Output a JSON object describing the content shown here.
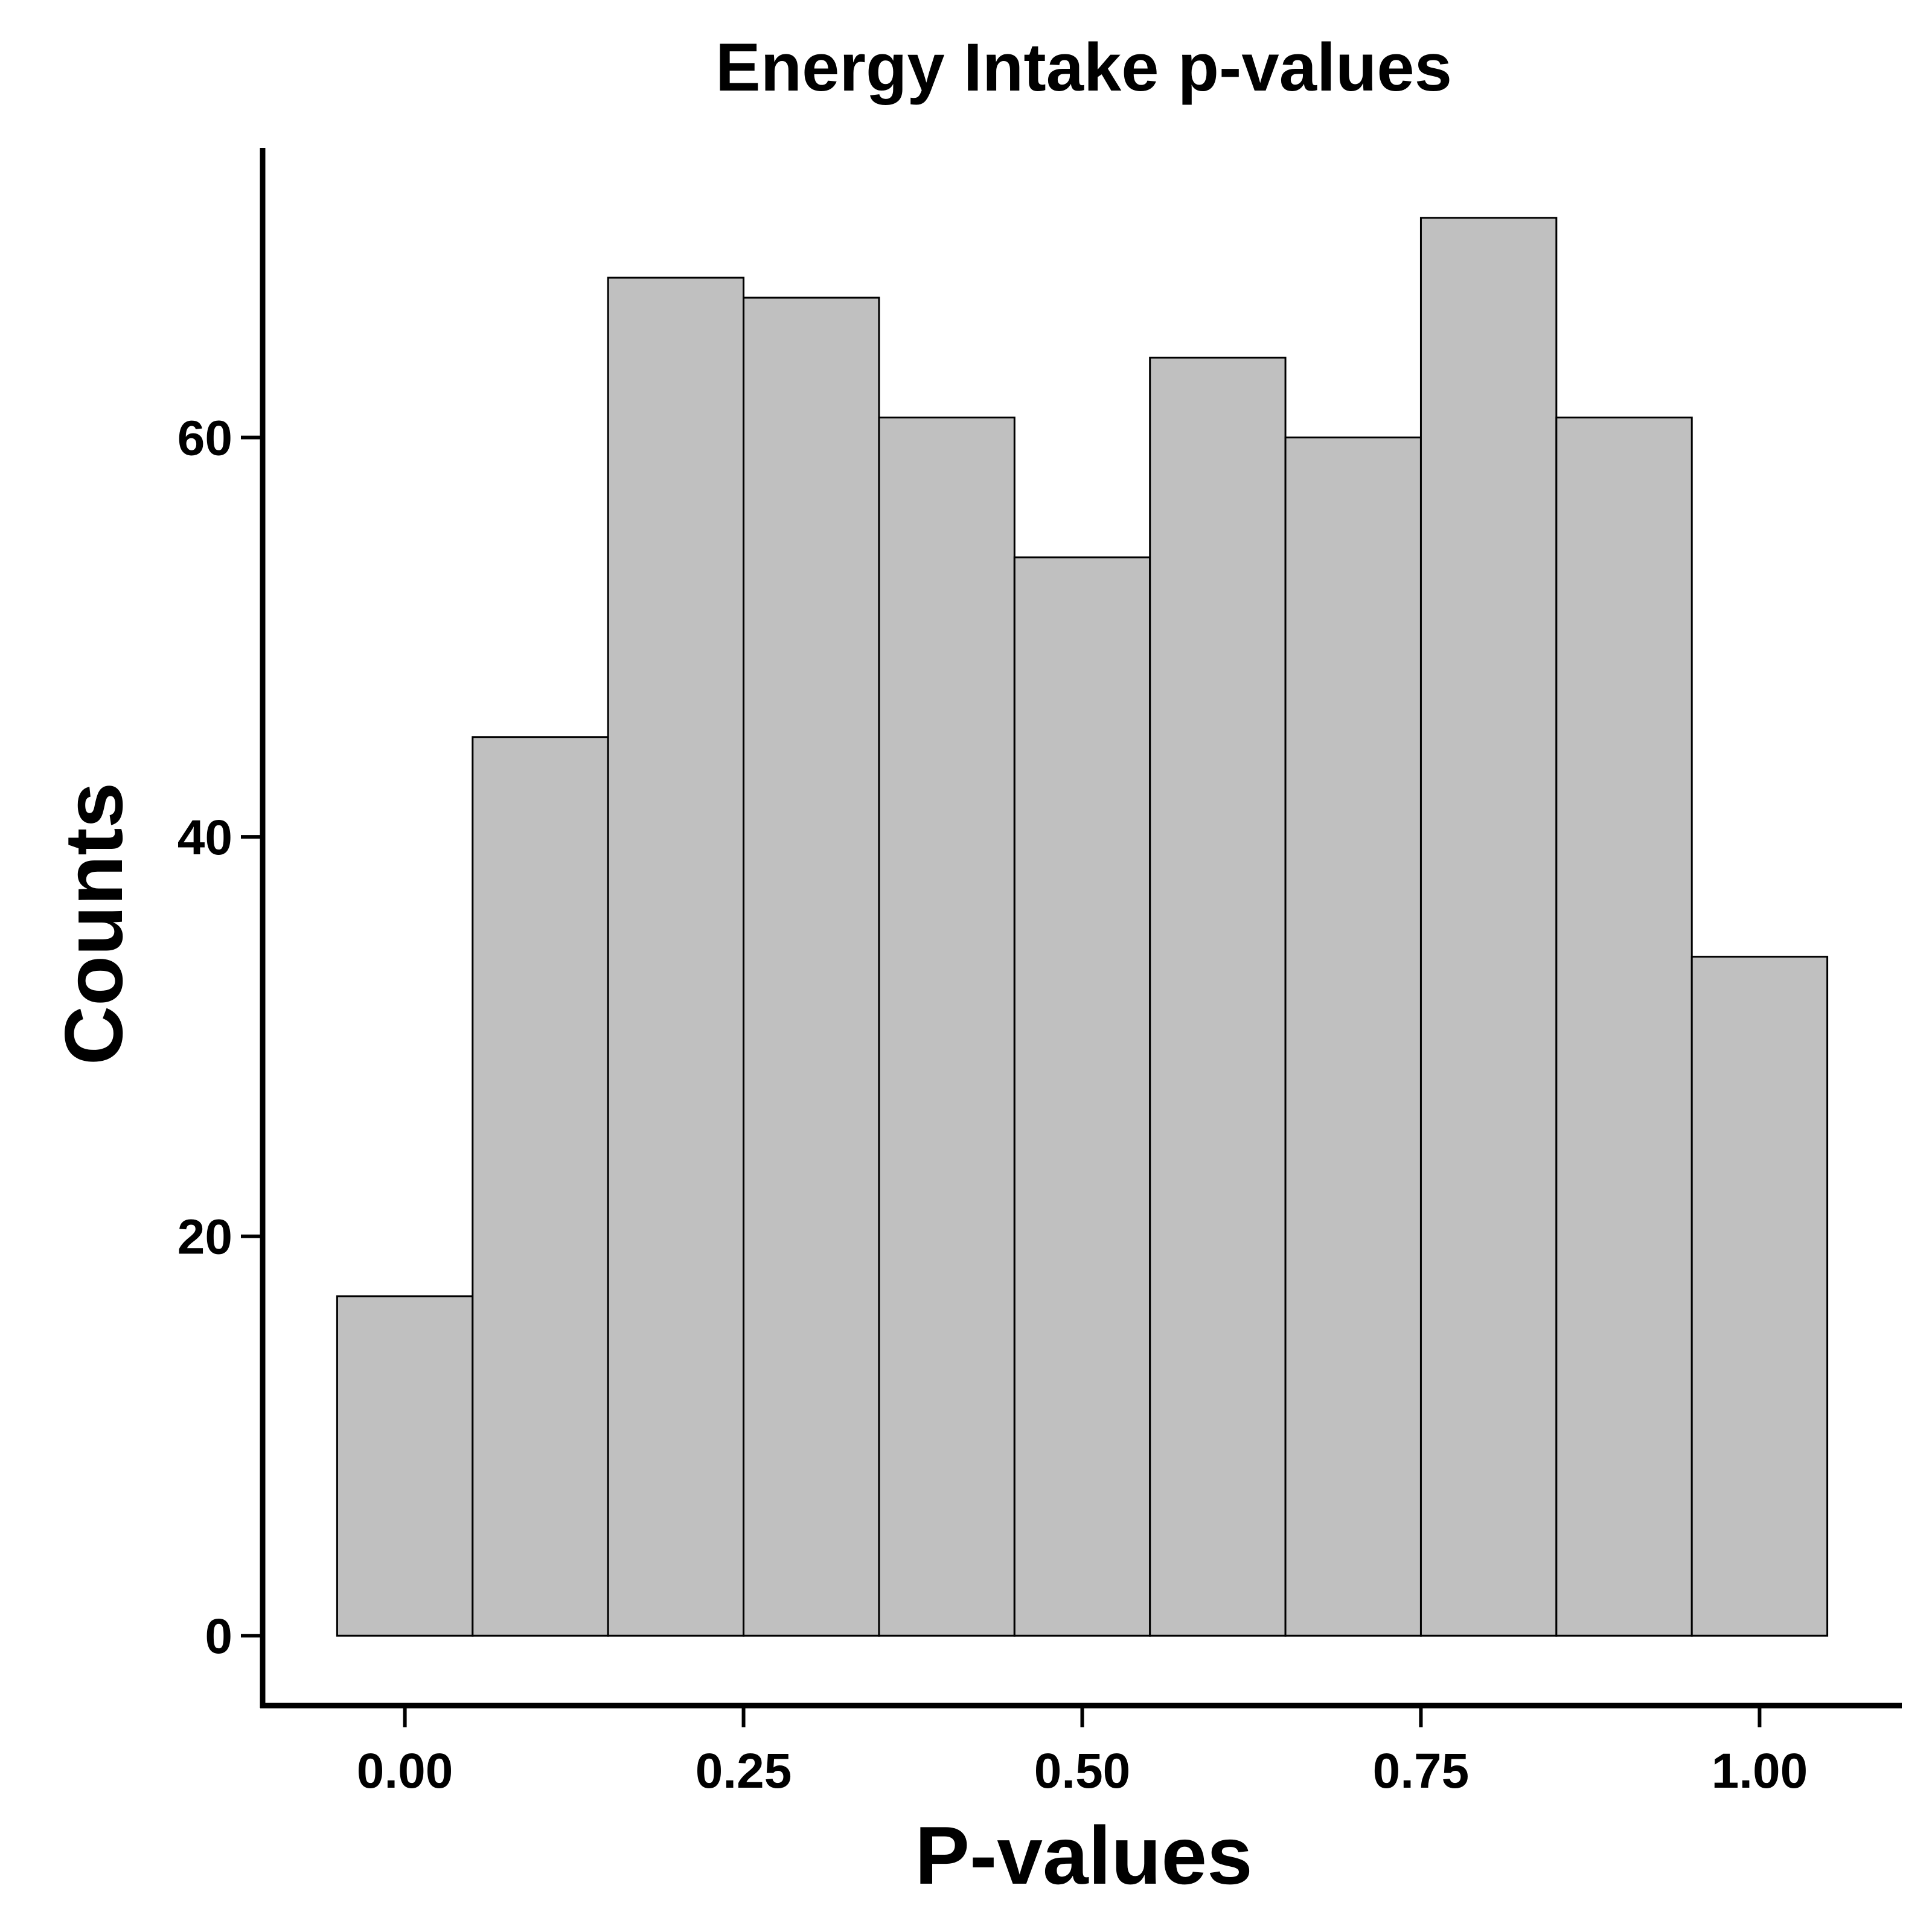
{
  "chart_data": {
    "type": "bar",
    "title": "Energy Intake p-values",
    "xlabel": "P-values",
    "ylabel": "Counts",
    "bin_width": 0.1,
    "bins": [
      {
        "start": -0.05,
        "end": 0.05,
        "count": 17
      },
      {
        "start": 0.05,
        "end": 0.15,
        "count": 45
      },
      {
        "start": 0.15,
        "end": 0.25,
        "count": 68
      },
      {
        "start": 0.25,
        "end": 0.35,
        "count": 67
      },
      {
        "start": 0.35,
        "end": 0.45,
        "count": 61
      },
      {
        "start": 0.45,
        "end": 0.55,
        "count": 54
      },
      {
        "start": 0.55,
        "end": 0.65,
        "count": 64
      },
      {
        "start": 0.65,
        "end": 0.75,
        "count": 60
      },
      {
        "start": 0.75,
        "end": 0.85,
        "count": 71
      },
      {
        "start": 0.85,
        "end": 0.95,
        "count": 61
      },
      {
        "start": 0.95,
        "end": 1.05,
        "count": 34
      }
    ],
    "x_ticks": [
      {
        "value": 0,
        "label": "0.00"
      },
      {
        "value": 0.25,
        "label": "0.25"
      },
      {
        "value": 0.5,
        "label": "0.50"
      },
      {
        "value": 0.75,
        "label": "0.75"
      },
      {
        "value": 1,
        "label": "1.00"
      }
    ],
    "y_ticks": [
      {
        "value": 0,
        "label": "0"
      },
      {
        "value": 20,
        "label": "20"
      },
      {
        "value": 40,
        "label": "40"
      },
      {
        "value": 60,
        "label": "60"
      }
    ],
    "xlim": [
      -0.105,
      1.105
    ],
    "ylim": [
      -3.5,
      74.5
    ],
    "bar_color": "#c0c0c0",
    "bar_edge_color": "#000000",
    "grid": false,
    "legend": "none"
  }
}
